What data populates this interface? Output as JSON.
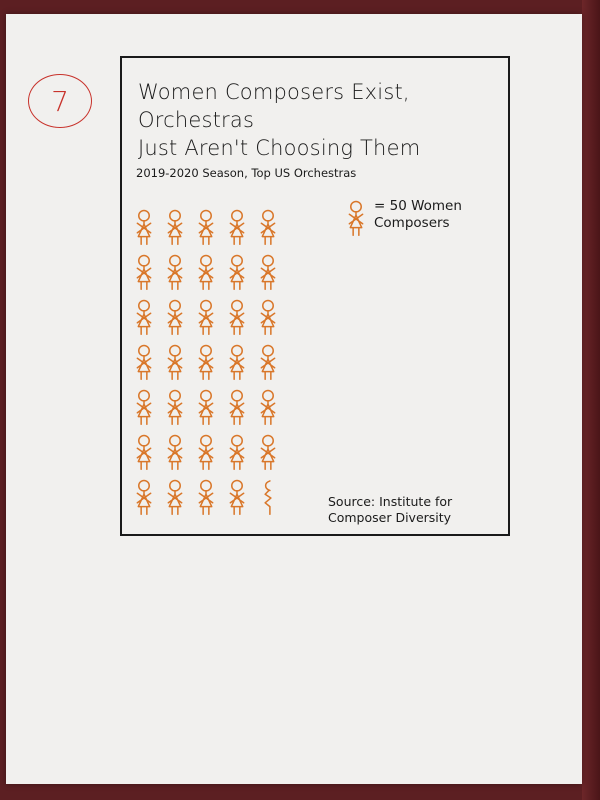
{
  "annotation": {
    "page_number": "7"
  },
  "chart": {
    "title_line1": "Women Composers Exist, Orchestras",
    "title_line2": "Just Aren't Choosing Them",
    "subtitle": "2019-2020 Season, Top US Orchestras",
    "legend_label_line1": "= 50 Women",
    "legend_label_line2": "Composers",
    "source_line1": "Source: Institute for",
    "source_line2": "Composer Diversity"
  },
  "colors": {
    "figure": "#d9772a",
    "ink": "#1b1b1b",
    "page_number": "#c8322b"
  },
  "chart_data": {
    "type": "pictogram",
    "title": "Women Composers Exist, Orchestras Just Aren't Choosing Them",
    "subtitle": "2019-2020 Season, Top US Orchestras",
    "unit_value": 50,
    "unit_label": "50 Women Composers",
    "columns_per_row": 5,
    "rows": [
      5,
      5,
      5,
      5,
      5,
      5,
      4
    ],
    "full_icons": 33,
    "partial_icon_fraction": 0.5,
    "total_icons": 33.5,
    "represented_value": 1675,
    "source": "Source: Institute for Composer Diversity"
  }
}
